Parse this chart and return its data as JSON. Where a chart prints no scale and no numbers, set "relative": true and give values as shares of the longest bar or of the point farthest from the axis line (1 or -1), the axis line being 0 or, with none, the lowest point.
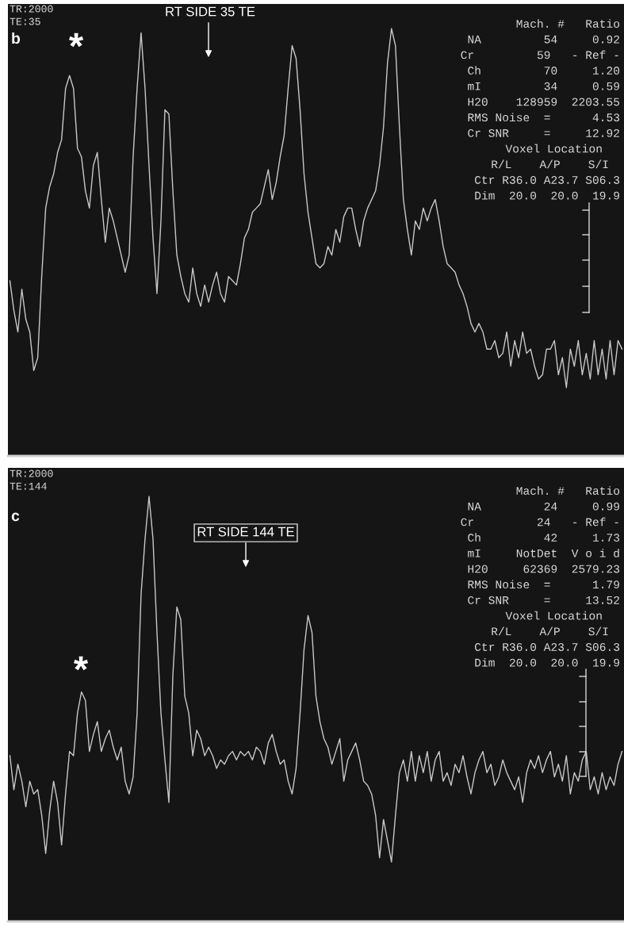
{
  "chart_data": [
    {
      "type": "line",
      "relative": true,
      "categories": [
        null,
        null,
        null,
        null,
        null,
        null,
        null,
        null,
        null,
        null,
        null,
        null,
        null,
        null,
        null,
        null,
        null,
        null,
        null,
        null,
        null,
        null,
        null,
        null,
        null,
        null,
        null,
        null,
        null,
        null,
        null,
        null,
        null,
        null,
        null,
        null,
        null,
        null,
        null,
        null,
        null,
        null,
        null,
        null,
        null,
        null,
        null,
        null,
        null,
        null,
        null,
        null,
        null,
        null,
        null,
        null,
        null,
        null,
        null,
        null,
        null,
        null,
        null,
        null,
        null,
        null,
        null,
        null,
        null,
        null,
        null,
        null,
        null,
        null,
        null,
        null,
        null,
        null,
        null,
        null,
        null,
        null,
        null,
        null,
        null,
        null,
        null,
        null,
        null,
        null,
        null,
        null,
        null,
        null,
        null,
        null,
        null,
        null,
        null,
        null,
        null,
        null,
        null,
        null,
        null,
        null,
        null,
        null,
        null,
        null,
        null,
        null,
        null,
        null,
        null,
        null,
        null,
        null,
        null,
        null,
        null,
        null,
        null,
        null,
        null,
        null,
        null,
        null,
        null,
        null,
        null,
        null,
        null,
        null,
        null,
        null,
        null,
        null,
        null,
        null,
        null,
        null,
        null,
        null,
        null,
        null,
        null,
        null,
        null,
        null,
        null,
        null,
        null,
        null,
        null
      ],
      "series": [
        {
          "color": "#c8c8c8",
          "values": [
            0.41,
            0.34,
            0.29,
            0.39,
            0.32,
            0.29,
            0.2,
            0.23,
            0.42,
            0.58,
            0.63,
            0.66,
            0.71,
            0.74,
            0.86,
            0.89,
            0.86,
            0.72,
            0.7,
            0.62,
            0.58,
            0.68,
            0.71,
            0.6,
            0.5,
            0.58,
            0.55,
            0.51,
            0.47,
            0.43,
            0.47,
            0.7,
            0.86,
            0.99,
            0.86,
            0.68,
            0.51,
            0.38,
            0.55,
            0.81,
            0.8,
            0.62,
            0.47,
            0.42,
            0.38,
            0.36,
            0.44,
            0.38,
            0.35,
            0.4,
            0.36,
            0.4,
            0.43,
            0.38,
            0.36,
            0.42,
            0.41,
            0.4,
            0.45,
            0.51,
            0.53,
            0.57,
            0.58,
            0.59,
            0.63,
            0.67,
            0.6,
            0.64,
            0.7,
            0.75,
            0.86,
            0.96,
            0.93,
            0.81,
            0.66,
            0.57,
            0.51,
            0.45,
            0.44,
            0.45,
            0.49,
            0.47,
            0.53,
            0.5,
            0.56,
            0.58,
            0.58,
            0.53,
            0.49,
            0.55,
            0.58,
            0.6,
            0.62,
            0.68,
            0.77,
            0.92,
            1,
            0.96,
            0.77,
            0.6,
            0.53,
            0.47,
            0.55,
            0.53,
            0.58,
            0.55,
            0.58,
            0.6,
            0.55,
            0.49,
            0.45,
            0.44,
            0.43,
            0.4,
            0.38,
            0.35,
            0.31,
            0.29,
            0.31,
            0.29,
            0.25,
            0.25,
            0.27,
            0.23,
            0.24,
            0.29,
            0.21,
            0.27,
            0.23,
            0.29,
            0.24,
            0.25,
            0.21,
            0.18,
            0.19,
            0.25,
            0.25,
            0.27,
            0.19,
            0.23,
            0.16,
            0.25,
            0.21,
            0.27,
            0.19,
            0.24,
            0.18,
            0.27,
            0.19,
            0.25,
            0.18,
            0.27,
            0.19,
            0.27,
            0.25
          ]
        }
      ],
      "annotations": [
        "TR:2000",
        "TE:35",
        "b",
        "*",
        "RT SIDE 35 TE",
        "Mach. #   Ratio",
        "NA         54     0.92",
        "Cr         59   - Ref -",
        "Ch         70     1.20",
        "mI         34     0.59",
        "H20    128959  2203.55",
        "RMS Noise  =      4.53",
        "Cr SNR     =     12.92",
        "Voxel Location",
        "R/L    A/P    S/I",
        "Ctr R36.0 A23.7 S06.3",
        "Dim  20.0  20.0  19.9"
      ]
    },
    {
      "type": "line",
      "relative": true,
      "categories": [
        null,
        null,
        null,
        null,
        null,
        null,
        null,
        null,
        null,
        null,
        null,
        null,
        null,
        null,
        null,
        null,
        null,
        null,
        null,
        null,
        null,
        null,
        null,
        null,
        null,
        null,
        null,
        null,
        null,
        null,
        null,
        null,
        null,
        null,
        null,
        null,
        null,
        null,
        null,
        null,
        null,
        null,
        null,
        null,
        null,
        null,
        null,
        null,
        null,
        null,
        null,
        null,
        null,
        null,
        null,
        null,
        null,
        null,
        null,
        null,
        null,
        null,
        null,
        null,
        null,
        null,
        null,
        null,
        null,
        null,
        null,
        null,
        null,
        null,
        null,
        null,
        null,
        null,
        null,
        null,
        null,
        null,
        null,
        null,
        null,
        null,
        null,
        null,
        null,
        null,
        null,
        null,
        null,
        null,
        null,
        null,
        null,
        null,
        null,
        null,
        null,
        null,
        null,
        null,
        null,
        null,
        null,
        null,
        null,
        null,
        null,
        null,
        null,
        null,
        null,
        null,
        null,
        null,
        null,
        null,
        null,
        null,
        null,
        null,
        null,
        null,
        null,
        null,
        null,
        null,
        null,
        null,
        null,
        null,
        null,
        null,
        null,
        null,
        null,
        null,
        null,
        null,
        null,
        null,
        null,
        null,
        null,
        null,
        null,
        null,
        null,
        null,
        null,
        null,
        null
      ],
      "series": [
        {
          "color": "#c8c8c8",
          "values": [
            0.39,
            0.31,
            0.37,
            0.33,
            0.27,
            0.33,
            0.3,
            0.31,
            0.25,
            0.16,
            0.26,
            0.33,
            0.28,
            0.18,
            0.3,
            0.4,
            0.39,
            0.49,
            0.54,
            0.52,
            0.4,
            0.44,
            0.47,
            0.4,
            0.43,
            0.45,
            0.41,
            0.38,
            0.41,
            0.33,
            0.3,
            0.34,
            0.49,
            0.77,
            0.9,
            1,
            0.9,
            0.68,
            0.49,
            0.38,
            0.28,
            0.58,
            0.74,
            0.71,
            0.53,
            0.49,
            0.39,
            0.45,
            0.43,
            0.39,
            0.41,
            0.39,
            0.36,
            0.38,
            0.37,
            0.39,
            0.4,
            0.38,
            0.4,
            0.39,
            0.4,
            0.38,
            0.41,
            0.4,
            0.37,
            0.42,
            0.44,
            0.4,
            0.37,
            0.38,
            0.33,
            0.3,
            0.36,
            0.49,
            0.64,
            0.72,
            0.68,
            0.53,
            0.47,
            0.43,
            0.41,
            0.37,
            0.4,
            0.43,
            0.33,
            0.38,
            0.4,
            0.42,
            0.38,
            0.33,
            0.32,
            0.3,
            0.25,
            0.15,
            0.24,
            0.19,
            0.14,
            0.25,
            0.35,
            0.38,
            0.33,
            0.4,
            0.33,
            0.39,
            0.35,
            0.4,
            0.33,
            0.38,
            0.4,
            0.33,
            0.35,
            0.32,
            0.37,
            0.35,
            0.39,
            0.34,
            0.3,
            0.35,
            0.38,
            0.4,
            0.35,
            0.37,
            0.32,
            0.34,
            0.38,
            0.35,
            0.33,
            0.31,
            0.34,
            0.28,
            0.35,
            0.38,
            0.36,
            0.39,
            0.35,
            0.38,
            0.4,
            0.34,
            0.37,
            0.33,
            0.39,
            0.3,
            0.35,
            0.33,
            0.38,
            0.4,
            0.31,
            0.34,
            0.3,
            0.35,
            0.31,
            0.34,
            0.32,
            0.37,
            0.4
          ]
        }
      ],
      "annotations": [
        "TR:2000",
        "TE:144",
        "c",
        "*",
        "RT SIDE 144 TE",
        "Mach. #   Ratio",
        "NA         24     0.99",
        "Cr         24   - Ref -",
        "Ch         42     1.73",
        "mI     NotDet  V o i d",
        "H20     62369  2579.23",
        "RMS Noise  =      1.79",
        "Cr SNR     =     13.52",
        "Voxel Location",
        "R/L    A/P    S/I",
        "Ctr R36.0 A23.7 S06.3",
        "Dim  20.0  20.0  19.9"
      ]
    }
  ]
}
